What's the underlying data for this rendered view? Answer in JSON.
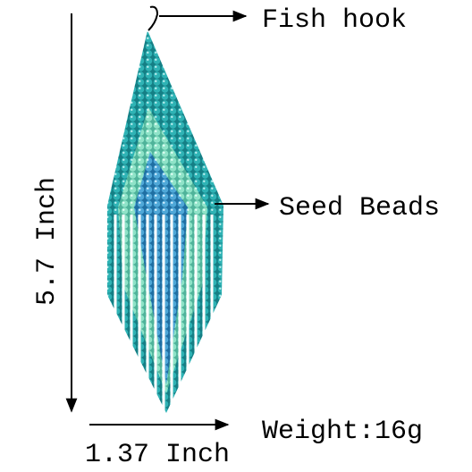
{
  "annotations": {
    "hook": "Fish hook",
    "beads": "Seed Beads",
    "height": "5.7 Inch",
    "width": "1.37 Inch",
    "weight": "Weight:16g"
  }
}
